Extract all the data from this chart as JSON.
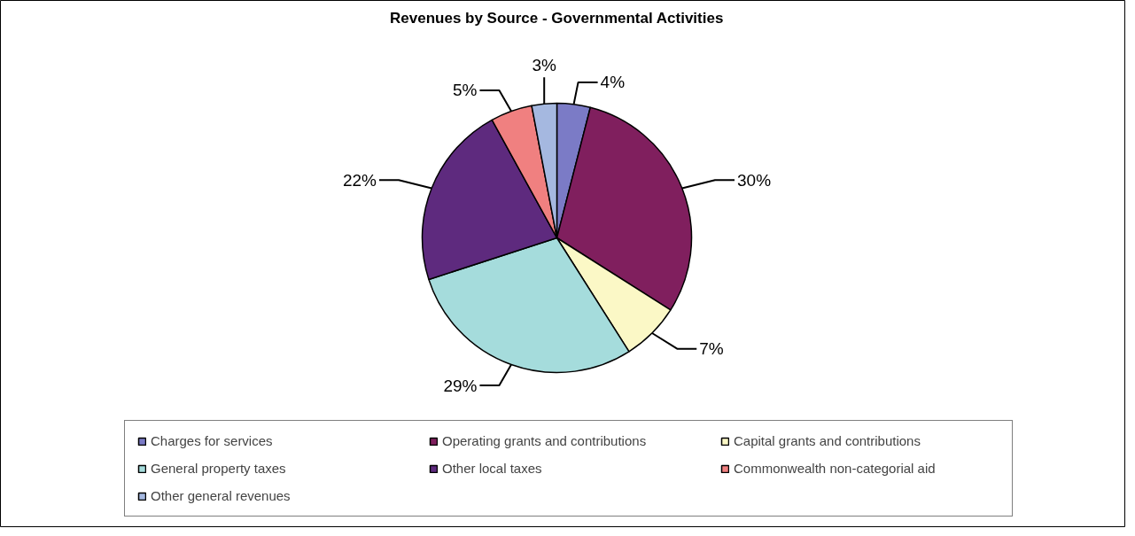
{
  "chart_data": {
    "type": "pie",
    "title": "Revenues by Source - Governmental Activities",
    "categories": [
      "Charges for services",
      "Operating grants and contributions",
      "Capital grants and contributions",
      "General property taxes",
      "Other local taxes",
      "Commonwealth non-categorial aid",
      "Other general revenues"
    ],
    "values": [
      4,
      30,
      7,
      29,
      22,
      5,
      3
    ],
    "value_labels": [
      "4%",
      "30%",
      "7%",
      "29%",
      "22%",
      "5%",
      "3%"
    ],
    "colors": [
      "#7b7bc6",
      "#801f5e",
      "#fbf8c6",
      "#a5dcdc",
      "#5e2a7e",
      "#f08080",
      "#a5b8e0"
    ],
    "legend": "bottom"
  }
}
